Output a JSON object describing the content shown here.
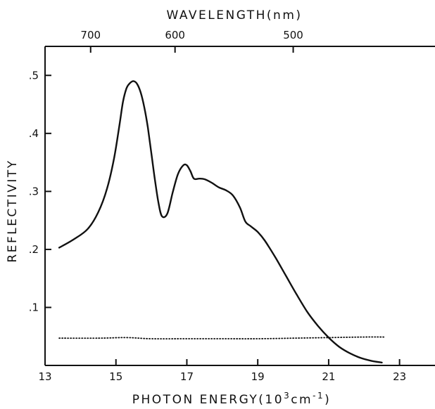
{
  "chart_data": {
    "type": "line",
    "title": "",
    "xlabel": "PHOTON ENERGY(10",
    "xlabel_sup1": "3",
    "xlabel_mid": "cm",
    "xlabel_sup2": "-1",
    "xlabel_end": ")",
    "ylabel": "REFLECTIVITY",
    "x2label": "WAVELENGTH(nm)",
    "xlim": [
      13,
      24
    ],
    "ylim": [
      0,
      0.55
    ],
    "x_ticks": [
      13,
      15,
      17,
      19,
      21,
      23
    ],
    "x_tick_labels": [
      "13",
      "15",
      "17",
      "19",
      "21",
      "23"
    ],
    "y_ticks": [
      0.1,
      0.2,
      0.3,
      0.4,
      0.5
    ],
    "y_tick_labels": [
      ".1",
      ".2",
      ".3",
      ".4",
      ".5"
    ],
    "x2_ticks_nm": [
      700,
      600,
      500
    ],
    "x2_tick_labels": [
      "700",
      "600",
      "500"
    ],
    "grid": false,
    "series": [
      {
        "style": "solid",
        "x": [
          13.4,
          13.8,
          14.2,
          14.5,
          14.75,
          14.95,
          15.1,
          15.2,
          15.3,
          15.4,
          15.5,
          15.6,
          15.7,
          15.8,
          15.9,
          16.0,
          16.1,
          16.2,
          16.3,
          16.45,
          16.6,
          16.75,
          16.9,
          17.0,
          17.1,
          17.2,
          17.35,
          17.5,
          17.7,
          17.9,
          18.1,
          18.3,
          18.5,
          18.65,
          18.8,
          19.0,
          19.2,
          19.5,
          19.8,
          20.1,
          20.4,
          20.7,
          21.0,
          21.3,
          21.6,
          21.9,
          22.2,
          22.5
        ],
        "y": [
          0.203,
          0.217,
          0.235,
          0.264,
          0.305,
          0.358,
          0.415,
          0.455,
          0.478,
          0.487,
          0.49,
          0.485,
          0.47,
          0.445,
          0.41,
          0.365,
          0.32,
          0.28,
          0.257,
          0.262,
          0.298,
          0.33,
          0.345,
          0.345,
          0.335,
          0.322,
          0.322,
          0.321,
          0.315,
          0.307,
          0.302,
          0.293,
          0.272,
          0.248,
          0.24,
          0.23,
          0.215,
          0.186,
          0.154,
          0.122,
          0.092,
          0.068,
          0.048,
          0.032,
          0.021,
          0.013,
          0.008,
          0.005
        ]
      },
      {
        "style": "dotted",
        "x": [
          13.4,
          14.5,
          15.3,
          16.0,
          17.0,
          18.0,
          19.0,
          20.0,
          21.0,
          22.0,
          22.6
        ],
        "y": [
          0.047,
          0.047,
          0.048,
          0.046,
          0.046,
          0.046,
          0.046,
          0.047,
          0.048,
          0.049,
          0.049
        ]
      }
    ]
  }
}
